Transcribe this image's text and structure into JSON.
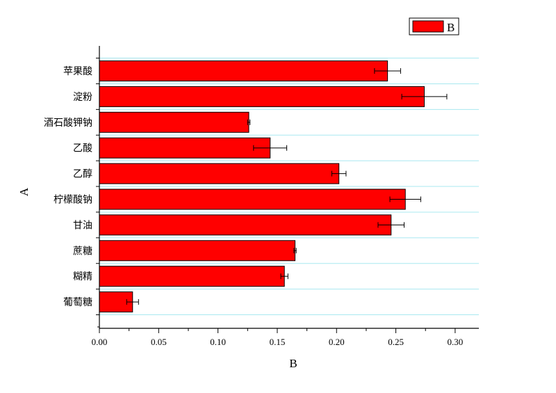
{
  "chart_data": {
    "type": "bar",
    "orientation": "horizontal",
    "categories": [
      "苹果酸",
      "淀粉",
      "酒石酸钾钠",
      "乙酸",
      "乙醇",
      "柠檬酸钠",
      "甘油",
      "蔗糖",
      "糊精",
      "葡萄糖"
    ],
    "series": [
      {
        "name": "B",
        "values": [
          0.243,
          0.274,
          0.126,
          0.144,
          0.202,
          0.258,
          0.246,
          0.165,
          0.156,
          0.028
        ],
        "errors": [
          0.011,
          0.019,
          0.001,
          0.014,
          0.006,
          0.013,
          0.011,
          0.001,
          0.003,
          0.005
        ],
        "color": "#ff0000"
      }
    ],
    "xlabel": "B",
    "ylabel": "A",
    "xlim": [
      0,
      0.32
    ],
    "xticks": [
      "0.00",
      "0.05",
      "0.10",
      "0.15",
      "0.20",
      "0.25",
      "0.30"
    ],
    "grid": "horizontal, light cyan",
    "legend": "top-right"
  }
}
